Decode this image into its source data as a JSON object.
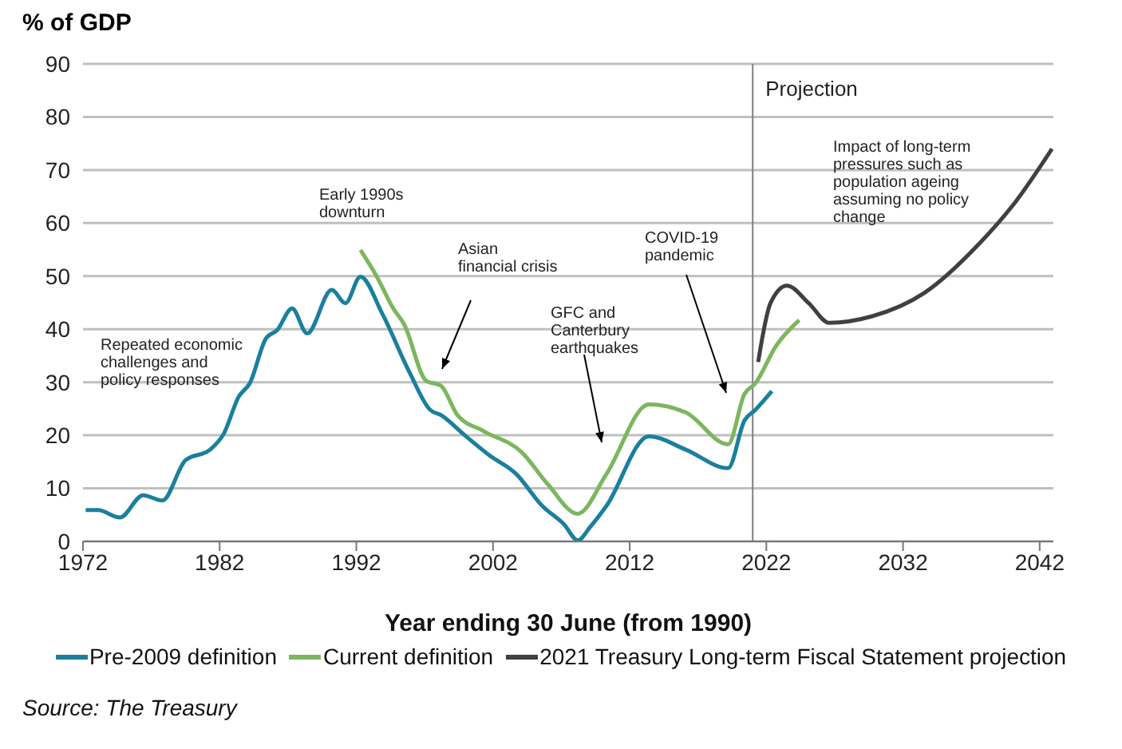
{
  "chart_data": {
    "type": "line",
    "ylabel": "% of GDP",
    "xlabel": "Year ending 30 June (from 1990)",
    "xlim": [
      1972,
      2043
    ],
    "xticks": [
      1972,
      1982,
      1992,
      2002,
      2012,
      2022,
      2032,
      2042
    ],
    "ylim": [
      0,
      90
    ],
    "yticks": [
      0,
      10,
      20,
      30,
      40,
      50,
      60,
      70,
      80,
      90
    ],
    "grid": "y",
    "legend": "bottom",
    "line_style": "solid",
    "marker": "none",
    "series": [
      {
        "name": "Pre-2009 definition",
        "color": "#1b7f9e",
        "x": [
          1972.2,
          1973.1,
          1974.7,
          1976.4,
          1977.8,
          1979.5,
          1981.3,
          1982.3,
          1983.4,
          1984.2,
          1985.4,
          1986.2,
          1987.3,
          1988.4,
          1990.2,
          1991.2,
          1992.3,
          1993.9,
          1995.9,
          1997.4,
          1998.2,
          1999.8,
          2001.7,
          2003.7,
          2005.6,
          2007.2,
          2008.2,
          2009.1,
          2010.3,
          2013.4,
          2016.1,
          2019.2,
          2020.4,
          2021.2,
          2022.4
        ],
        "values": [
          5.9,
          5.9,
          4.5,
          8.7,
          7.7,
          15.3,
          17.3,
          20.3,
          27.3,
          29.8,
          38.3,
          39.8,
          43.9,
          39.2,
          47.4,
          44.9,
          49.9,
          42.9,
          31.8,
          24.8,
          23.8,
          20.3,
          16.3,
          12.7,
          6.7,
          3.2,
          0.2,
          2.7,
          6.7,
          19.8,
          17.3,
          13.8,
          22.8,
          24.8,
          28.3
        ]
      },
      {
        "name": "Current definition",
        "color": "#7cb65e",
        "x": [
          1992.3,
          1993.5,
          1994.7,
          1995.5,
          1997.1,
          1998.2,
          1999.4,
          2001.3,
          2004.1,
          2006.0,
          2008.2,
          2010.3,
          2013.4,
          2016.1,
          2019.2,
          2020.4,
          2021.2,
          2022.7,
          2024.4
        ],
        "values": [
          54.9,
          49.9,
          43.9,
          40.9,
          30.3,
          29.3,
          23.8,
          20.8,
          16.8,
          10.8,
          5.2,
          12.7,
          25.8,
          24.3,
          18.3,
          27.8,
          29.8,
          36.8,
          41.7
        ]
      },
      {
        "name": "2021 Treasury Long-term Fiscal Statement projection",
        "color": "#404040",
        "x": [
          2021.4,
          2022.3,
          2023.5,
          2025.1,
          2026.6,
          2029.7,
          2033.6,
          2037.5,
          2040.2,
          2042.9
        ],
        "values": [
          33.8,
          44.9,
          48.2,
          44.9,
          41.2,
          42.4,
          46.9,
          55.9,
          63.9,
          74.0
        ]
      }
    ],
    "ref_lines": [
      {
        "axis": "x",
        "value": 2021,
        "label": "Projection",
        "color": "#808080"
      }
    ],
    "annotations": [
      "Repeated economic challenges and policy responses",
      "Early 1990s downturn",
      "Asian financial crisis",
      "GFC and Canterbury earthquakes",
      "COVID-19 pandemic",
      "Impact of long-term pressures such as population ageing assuming no policy change",
      "Source: The Treasury"
    ]
  }
}
